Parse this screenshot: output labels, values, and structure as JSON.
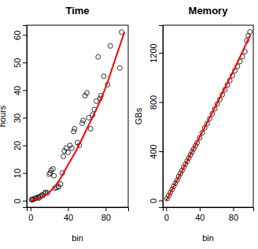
{
  "chart_data": [
    {
      "type": "scatter",
      "title": "Time",
      "x_label": "bin",
      "y_label": "hours",
      "xlim": [
        -4,
        104
      ],
      "ylim": [
        -2.4,
        63.5
      ],
      "xticks": [
        0,
        40,
        80
      ],
      "yticks": [
        0,
        10,
        20,
        30,
        40,
        50,
        60
      ],
      "grid": false,
      "series": [
        {
          "type": "scatter",
          "marker": "circle",
          "color": "#000000",
          "x": [
            1,
            2,
            3,
            5,
            6,
            8,
            9,
            10,
            12,
            13,
            15,
            16,
            18,
            20,
            21,
            22,
            24,
            25,
            26,
            28,
            30,
            32,
            34,
            35,
            36,
            38,
            40,
            42,
            44,
            46,
            47,
            50,
            52,
            55,
            56,
            58,
            60,
            62,
            64,
            66,
            68,
            70,
            72,
            74,
            75,
            78,
            82,
            85,
            95,
            97
          ],
          "values": [
            0.3,
            0.5,
            0.4,
            0.8,
            1,
            1.2,
            0.9,
            1.5,
            2,
            1.8,
            2.5,
            3,
            2.8,
            9.5,
            10,
            11,
            11.5,
            9,
            4.5,
            4.8,
            5,
            6,
            10,
            16,
            18,
            19,
            17.5,
            20,
            19,
            25,
            26,
            21,
            20,
            28,
            29,
            38,
            39,
            30,
            26,
            31,
            33,
            36,
            52,
            37,
            38,
            45,
            42,
            56,
            48,
            61
          ]
        },
        {
          "type": "line",
          "line_style": "solid",
          "color": "#ff0000",
          "x": [
            0,
            10,
            20,
            30,
            40,
            50,
            60,
            70,
            80,
            90,
            100
          ],
          "values": [
            0,
            1,
            3,
            7,
            13,
            19,
            26,
            33,
            41,
            51,
            61
          ]
        }
      ]
    },
    {
      "type": "scatter",
      "title": "Memory",
      "x_label": "bin",
      "y_label": "GBs",
      "xlim": [
        -4,
        104
      ],
      "ylim": [
        -55,
        1425
      ],
      "xticks": [
        0,
        40,
        80
      ],
      "yticks": [
        0,
        400,
        800,
        1200
      ],
      "grid": false,
      "series": [
        {
          "type": "scatter",
          "marker": "circle",
          "color": "#000000",
          "x": [
            1,
            3,
            5,
            7,
            9,
            11,
            13,
            15,
            17,
            19,
            21,
            23,
            25,
            27,
            29,
            31,
            33,
            35,
            37,
            40,
            43,
            46,
            49,
            52,
            55,
            58,
            61,
            64,
            67,
            70,
            73,
            76,
            79,
            82,
            85,
            88,
            91,
            94,
            96,
            98,
            100
          ],
          "values": [
            15,
            40,
            65,
            90,
            115,
            140,
            165,
            195,
            220,
            245,
            270,
            295,
            320,
            345,
            370,
            395,
            420,
            445,
            470,
            510,
            550,
            590,
            625,
            665,
            705,
            745,
            785,
            820,
            860,
            900,
            940,
            975,
            1015,
            1055,
            1090,
            1130,
            1170,
            1210,
            1300,
            1340,
            1370
          ]
        },
        {
          "type": "line",
          "line_style": "solid",
          "color": "#ff0000",
          "x": [
            0,
            20,
            40,
            60,
            80,
            100
          ],
          "values": [
            0,
            255,
            515,
            780,
            1050,
            1340
          ]
        }
      ]
    }
  ]
}
